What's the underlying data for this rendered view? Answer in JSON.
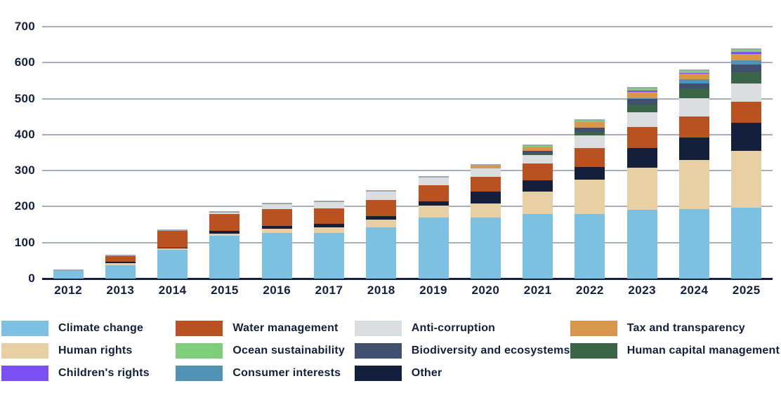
{
  "chart_data": {
    "type": "bar",
    "stacked": true,
    "title": "",
    "xlabel": "",
    "ylabel": "",
    "ylim": [
      0,
      700
    ],
    "yticks": [
      0,
      100,
      200,
      300,
      400,
      500,
      600,
      700
    ],
    "grid": true,
    "legend_position": "bottom",
    "categories": [
      "2012",
      "2013",
      "2014",
      "2015",
      "2016",
      "2017",
      "2018",
      "2019",
      "2020",
      "2021",
      "2022",
      "2023",
      "2024",
      "2025"
    ],
    "series": [
      {
        "name": "Climate change",
        "color": "#7cc0e2",
        "values": [
          22,
          38,
          79,
          118,
          127,
          127,
          143,
          169,
          169,
          179,
          180,
          192,
          194,
          196
        ]
      },
      {
        "name": "Human rights",
        "color": "#e9cfa4",
        "values": [
          0,
          4,
          4,
          7,
          12,
          16,
          20,
          33,
          39,
          62,
          95,
          117,
          135,
          158
        ]
      },
      {
        "name": "Other",
        "color": "#131f3c",
        "values": [
          0,
          4,
          3,
          8,
          8,
          10,
          10,
          13,
          33,
          32,
          35,
          54,
          62,
          78
        ]
      },
      {
        "name": "Water management",
        "color": "#ba5121",
        "values": [
          0,
          16,
          47,
          46,
          46,
          42,
          46,
          44,
          42,
          46,
          53,
          59,
          60,
          60
        ]
      },
      {
        "name": "Anti-corruption",
        "color": "#dbdde1",
        "values": [
          0,
          0,
          0,
          5,
          13,
          18,
          22,
          22,
          24,
          24,
          34,
          41,
          51,
          51
        ]
      },
      {
        "name": "Human capital management",
        "color": "#3a6647",
        "values": [
          0,
          0,
          0,
          0,
          0,
          0,
          0,
          0,
          0,
          4,
          11,
          20,
          26,
          30
        ]
      },
      {
        "name": "Biodiversity and ecosystems",
        "color": "#40506e",
        "values": [
          0,
          0,
          0,
          0,
          0,
          0,
          0,
          0,
          0,
          8,
          12,
          16,
          15,
          21
        ]
      },
      {
        "name": "Consumer interests",
        "color": "#5193b5",
        "values": [
          0,
          0,
          0,
          0,
          0,
          0,
          0,
          0,
          0,
          0,
          0,
          3,
          10,
          13
        ]
      },
      {
        "name": "Tax and transparency",
        "color": "#d9974e",
        "values": [
          0,
          0,
          0,
          0,
          0,
          0,
          0,
          0,
          7,
          10,
          14,
          16,
          16,
          18
        ]
      },
      {
        "name": "Children's rights",
        "color": "#7b50f2",
        "values": [
          0,
          0,
          0,
          0,
          0,
          0,
          0,
          0,
          0,
          0,
          0,
          5,
          3,
          5
        ]
      },
      {
        "name": "Ocean sustainability",
        "color": "#7fce7b",
        "values": [
          0,
          0,
          0,
          0,
          0,
          0,
          0,
          0,
          0,
          3,
          5,
          5,
          5,
          5
        ]
      }
    ]
  },
  "legend_columns": [
    [
      "Climate change",
      "Human rights",
      "Children's rights"
    ],
    [
      "Water management",
      "Ocean sustainability",
      "Consumer interests"
    ],
    [
      "Anti-corruption",
      "Biodiversity and ecosystems",
      "Other"
    ],
    [
      "Tax and transparency",
      "Human capital management"
    ]
  ]
}
